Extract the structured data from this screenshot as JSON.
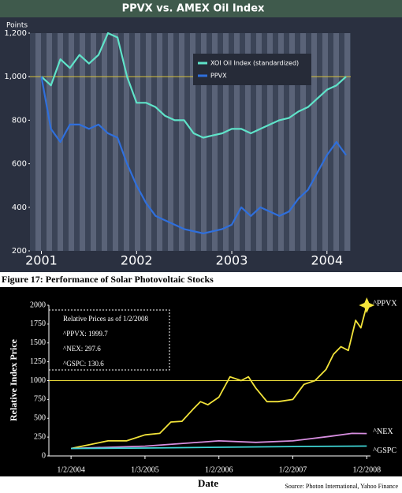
{
  "caption": "Figure 17: Performance of Solar Photovoltaic Stocks",
  "chart_data": [
    {
      "type": "line",
      "title": "PPVX vs. AMEX Oil Index",
      "ylabel": "Points",
      "x": [
        2001.0,
        2001.1,
        2001.2,
        2001.3,
        2001.4,
        2001.5,
        2001.6,
        2001.7,
        2001.8,
        2001.9,
        2002.0,
        2002.1,
        2002.2,
        2002.3,
        2002.4,
        2002.5,
        2002.6,
        2002.7,
        2002.8,
        2002.9,
        2003.0,
        2003.1,
        2003.2,
        2003.3,
        2003.4,
        2003.5,
        2003.6,
        2003.7,
        2003.8,
        2003.9,
        2004.0,
        2004.1,
        2004.2
      ],
      "series": [
        {
          "name": "XOI Oil Index (standardized)",
          "color": "#5fe3c9",
          "values": [
            1000,
            960,
            1080,
            1040,
            1100,
            1060,
            1100,
            1200,
            1180,
            1000,
            880,
            880,
            860,
            820,
            800,
            800,
            740,
            720,
            730,
            740,
            760,
            760,
            740,
            760,
            780,
            800,
            810,
            840,
            860,
            900,
            940,
            960,
            1000
          ]
        },
        {
          "name": "PPVX",
          "color": "#2f6fdc",
          "values": [
            1000,
            760,
            700,
            780,
            780,
            760,
            780,
            740,
            720,
            600,
            500,
            420,
            360,
            340,
            320,
            300,
            290,
            280,
            290,
            300,
            320,
            400,
            360,
            400,
            380,
            360,
            380,
            440,
            480,
            560,
            640,
            700,
            640
          ]
        }
      ],
      "xlim": [
        2000.88,
        2004.25
      ],
      "xticks": [
        2001,
        2002,
        2003,
        2004
      ],
      "ylim": [
        200,
        1200
      ],
      "yticks": [
        200,
        400,
        600,
        800,
        {
          "value": 1000,
          "label": "1,000"
        },
        {
          "value": 1200,
          "label": "1,200"
        }
      ],
      "hline": 1000,
      "hline_color": "#d8c23a",
      "legend": "upper right"
    },
    {
      "type": "line",
      "xlabel": "Date",
      "ylabel": "Relative Index Price",
      "series": [
        {
          "name": "^PPVX",
          "color": "#f2e33a",
          "x": [
            2004.0,
            2004.25,
            2004.5,
            2004.75,
            2005.0,
            2005.2,
            2005.35,
            2005.5,
            2005.65,
            2005.75,
            2005.85,
            2006.0,
            2006.15,
            2006.3,
            2006.4,
            2006.5,
            2006.65,
            2006.8,
            2007.0,
            2007.15,
            2007.3,
            2007.45,
            2007.55,
            2007.65,
            2007.75,
            2007.85,
            2007.92,
            2008.0
          ],
          "values": [
            100,
            150,
            200,
            200,
            280,
            300,
            450,
            460,
            620,
            720,
            680,
            780,
            1050,
            1000,
            1050,
            900,
            720,
            720,
            750,
            950,
            1000,
            1150,
            1350,
            1450,
            1400,
            1800,
            1700,
            1999.7
          ]
        },
        {
          "name": "^NEX",
          "color": "#d78ee0",
          "x": [
            2004.0,
            2005.0,
            2006.0,
            2006.5,
            2007.0,
            2007.5,
            2007.8,
            2008.0
          ],
          "values": [
            100,
            130,
            200,
            180,
            200,
            260,
            300,
            297.6
          ]
        },
        {
          "name": "^GSPC",
          "color": "#3fd6d6",
          "x": [
            2004.0,
            2005.0,
            2006.0,
            2007.0,
            2007.8,
            2008.0
          ],
          "values": [
            100,
            105,
            115,
            125,
            130,
            130.6
          ]
        }
      ],
      "xlim": [
        2003.7,
        2008.05
      ],
      "xticks": [
        {
          "value": 2004.0,
          "label": "1/2/2004"
        },
        {
          "value": 2005.0,
          "label": "1/3/2005"
        },
        {
          "value": 2006.0,
          "label": "1/2/2006"
        },
        {
          "value": 2007.0,
          "label": "1/2/2007"
        },
        {
          "value": 2008.0,
          "label": "1/2/2008"
        }
      ],
      "ylim": [
        0,
        2000
      ],
      "yticks": [
        0,
        250,
        500,
        750,
        1000,
        1250,
        1500,
        1750,
        2000
      ],
      "hline": 1000,
      "hline_color": "#e8d83a",
      "annotations": [
        "Relative Prices as of 1/2/2008",
        "^PPVX: 1999.7",
        "^NEX: 297.6",
        "^GSPC: 130.6"
      ],
      "source": "Source: Photon International, Yahoo Finance"
    }
  ]
}
